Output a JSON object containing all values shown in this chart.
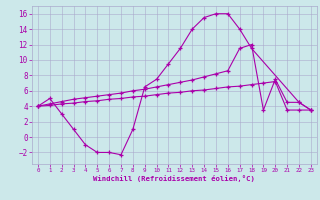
{
  "background_color": "#cce8ea",
  "line_color": "#aa00aa",
  "grid_color": "#aaaacc",
  "xlabel": "Windchill (Refroidissement éolien,°C)",
  "ylim": [
    -3.5,
    17
  ],
  "xlim": [
    -0.5,
    23.5
  ],
  "yticks": [
    -2,
    0,
    2,
    4,
    6,
    8,
    10,
    12,
    14,
    16
  ],
  "xticks": [
    0,
    1,
    2,
    3,
    4,
    5,
    6,
    7,
    8,
    9,
    10,
    11,
    12,
    13,
    14,
    15,
    16,
    17,
    18,
    19,
    20,
    21,
    22,
    23
  ],
  "spike_x": [
    0,
    1,
    2,
    3,
    4,
    5,
    6,
    7,
    8,
    9,
    10,
    11,
    12,
    13,
    14,
    15,
    16,
    17,
    18,
    22,
    23
  ],
  "spike_y": [
    4,
    5,
    3,
    1,
    -1,
    -2,
    -2,
    -2.3,
    1.0,
    6.5,
    7.5,
    9.5,
    11.5,
    14,
    15.5,
    16,
    16,
    14,
    11.5,
    4.5,
    3.5
  ],
  "upper_x": [
    0,
    1,
    2,
    3,
    4,
    5,
    6,
    7,
    8,
    9,
    10,
    11,
    12,
    13,
    14,
    15,
    16,
    17,
    18,
    19,
    20,
    21,
    22,
    23
  ],
  "upper_y": [
    4.0,
    4.3,
    4.6,
    4.9,
    5.1,
    5.3,
    5.5,
    5.7,
    6.0,
    6.2,
    6.5,
    6.8,
    7.1,
    7.4,
    7.8,
    8.2,
    8.6,
    11.5,
    12.0,
    3.5,
    7.5,
    4.5,
    4.5,
    3.5
  ],
  "lower_x": [
    0,
    1,
    2,
    3,
    4,
    5,
    6,
    7,
    8,
    9,
    10,
    11,
    12,
    13,
    14,
    15,
    16,
    17,
    18,
    19,
    20,
    21,
    22,
    23
  ],
  "lower_y": [
    4.0,
    4.1,
    4.3,
    4.4,
    4.6,
    4.7,
    4.9,
    5.0,
    5.2,
    5.3,
    5.5,
    5.7,
    5.8,
    6.0,
    6.1,
    6.3,
    6.5,
    6.6,
    6.8,
    7.0,
    7.2,
    3.5,
    3.5,
    3.5
  ]
}
